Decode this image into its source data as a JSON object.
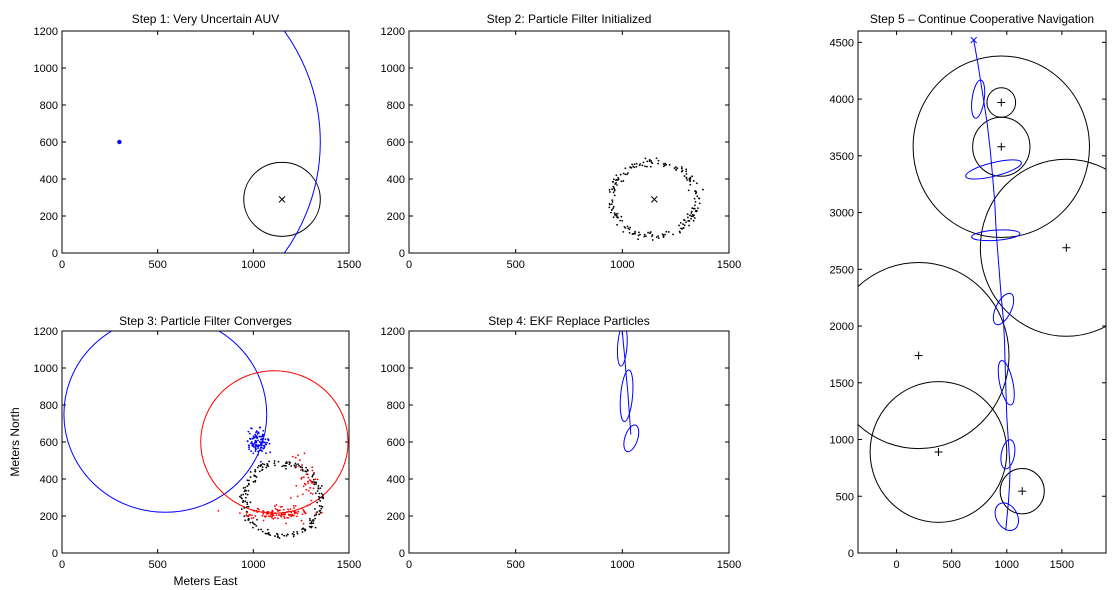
{
  "figure": {
    "xlabel": "Meters East",
    "ylabel": "Meters North"
  },
  "chart_data": [
    {
      "id": "step1",
      "type": "scatter",
      "title": "Step 1: Very Uncertain AUV",
      "xlim": [
        0,
        1500
      ],
      "ylim": [
        0,
        1200
      ],
      "xticks": [
        0,
        500,
        1000,
        1500
      ],
      "yticks": [
        0,
        200,
        400,
        600,
        800,
        1000,
        1200
      ],
      "circles": [
        {
          "cx": 1150,
          "cy": 290,
          "r": 200,
          "color": "#000000"
        },
        {
          "cx": 300,
          "cy": 600,
          "r": 1050,
          "color": "#0000ff"
        }
      ],
      "points": [
        {
          "x": 300,
          "y": 600,
          "marker": "dot",
          "color": "#0000ff"
        },
        {
          "x": 1150,
          "y": 290,
          "marker": "x",
          "color": "#000000"
        }
      ]
    },
    {
      "id": "step2",
      "type": "scatter",
      "title": "Step 2: Particle Filter Initialized",
      "xlim": [
        0,
        1500
      ],
      "ylim": [
        0,
        1200
      ],
      "xticks": [
        0,
        500,
        1000,
        1500
      ],
      "yticks": [
        0,
        200,
        400,
        600,
        800,
        1000,
        1200
      ],
      "points": [
        {
          "x": 1150,
          "y": 290,
          "marker": "x",
          "color": "#000000"
        }
      ],
      "particle_rings": [
        {
          "cx": 1150,
          "cy": 290,
          "r": 200,
          "n": 200,
          "color": "#000000"
        }
      ]
    },
    {
      "id": "step3",
      "type": "scatter",
      "title": "Step 3: Particle Filter Converges",
      "xlim": [
        0,
        1500
      ],
      "ylim": [
        0,
        1200
      ],
      "xticks": [
        0,
        500,
        1000,
        1500
      ],
      "yticks": [
        0,
        200,
        400,
        600,
        800,
        1000,
        1200
      ],
      "circles": [
        {
          "cx": 540,
          "cy": 750,
          "r": 530,
          "color": "#0000ff"
        },
        {
          "cx": 1110,
          "cy": 600,
          "r": 385,
          "color": "#ff0000"
        }
      ],
      "particle_rings": [
        {
          "cx": 1150,
          "cy": 290,
          "r": 200,
          "n": 200,
          "color": "#000000"
        }
      ],
      "particle_clusters": [
        {
          "cx": 1020,
          "cy": 600,
          "sx": 28,
          "sy": 32,
          "n": 110,
          "color": "#0000ff"
        },
        {
          "cx": 1130,
          "cy": 215,
          "sx": 90,
          "sy": 18,
          "n": 120,
          "color": "#ff0000"
        },
        {
          "cx": 1270,
          "cy": 420,
          "sx": 30,
          "sy": 80,
          "n": 40,
          "color": "#ff0000"
        }
      ]
    },
    {
      "id": "step4",
      "type": "line",
      "title": "Step 4: EKF Replace Particles",
      "xlim": [
        0,
        1500
      ],
      "ylim": [
        0,
        1200
      ],
      "xticks": [
        0,
        500,
        1000,
        1500
      ],
      "yticks": [
        0,
        200,
        400,
        600,
        800,
        1000,
        1200
      ],
      "track": {
        "x": [
          1000,
          1005,
          1012,
          1018,
          1025,
          1030,
          1035,
          1040
        ],
        "y": [
          1200,
          1130,
          1050,
          960,
          880,
          800,
          720,
          640
        ],
        "color": "#0000ff"
      },
      "ellipses": [
        {
          "cx": 1000,
          "cy": 1120,
          "rx": 22,
          "ry": 110,
          "angle": 4,
          "color": "#0000ff"
        },
        {
          "cx": 1020,
          "cy": 850,
          "rx": 28,
          "ry": 140,
          "angle": 5,
          "color": "#0000ff"
        },
        {
          "cx": 1042,
          "cy": 620,
          "rx": 30,
          "ry": 75,
          "angle": 18,
          "color": "#0000ff"
        }
      ]
    },
    {
      "id": "step5",
      "type": "line",
      "title": "Step 5 – Continue Cooperative Navigation",
      "xlim": [
        -350,
        1900
      ],
      "ylim": [
        0,
        4600
      ],
      "xticks": [
        0,
        500,
        1000,
        1500
      ],
      "yticks": [
        0,
        500,
        1000,
        1500,
        2000,
        2500,
        3000,
        3500,
        4000,
        4500
      ],
      "circles": [
        {
          "cx": 950,
          "cy": 3580,
          "r": 800,
          "color": "#000000"
        },
        {
          "cx": 950,
          "cy": 3580,
          "r": 260,
          "color": "#000000"
        },
        {
          "cx": 950,
          "cy": 3970,
          "r": 130,
          "color": "#000000"
        },
        {
          "cx": 1540,
          "cy": 2690,
          "r": 780,
          "color": "#000000"
        },
        {
          "cx": 200,
          "cy": 1740,
          "r": 820,
          "color": "#000000"
        },
        {
          "cx": 380,
          "cy": 890,
          "r": 620,
          "color": "#000000"
        },
        {
          "cx": 1140,
          "cy": 545,
          "r": 200,
          "color": "#000000"
        }
      ],
      "points": [
        {
          "x": 950,
          "y": 3580,
          "marker": "plus",
          "color": "#000000"
        },
        {
          "x": 950,
          "y": 3970,
          "marker": "plus",
          "color": "#000000"
        },
        {
          "x": 1540,
          "y": 2690,
          "marker": "plus",
          "color": "#000000"
        },
        {
          "x": 200,
          "y": 1740,
          "marker": "plus",
          "color": "#000000"
        },
        {
          "x": 380,
          "y": 890,
          "marker": "plus",
          "color": "#000000"
        },
        {
          "x": 1140,
          "y": 545,
          "marker": "plus",
          "color": "#000000"
        },
        {
          "x": 700,
          "y": 4520,
          "marker": "x",
          "color": "#0000ff"
        }
      ],
      "track": {
        "x": [
          700,
          740,
          780,
          820,
          850,
          870,
          890,
          900,
          910,
          930,
          950,
          970,
          980,
          985,
          990,
          995,
          1000,
          1010,
          1020,
          1030,
          1025,
          1015,
          1000,
          990
        ],
        "y": [
          4520,
          4300,
          4050,
          3800,
          3550,
          3330,
          3100,
          2900,
          2750,
          2500,
          2250,
          2050,
          1850,
          1650,
          1500,
          1350,
          1200,
          1050,
          900,
          750,
          600,
          450,
          300,
          200
        ],
        "color": "#0000ff"
      },
      "ellipses": [
        {
          "cx": 740,
          "cy": 4000,
          "rx": 55,
          "ry": 170,
          "angle": 8,
          "color": "#0000ff"
        },
        {
          "cx": 880,
          "cy": 3380,
          "rx": 260,
          "ry": 60,
          "angle": -14,
          "color": "#0000ff"
        },
        {
          "cx": 900,
          "cy": 2800,
          "rx": 220,
          "ry": 45,
          "angle": -4,
          "color": "#0000ff"
        },
        {
          "cx": 970,
          "cy": 2150,
          "rx": 70,
          "ry": 150,
          "angle": 26,
          "color": "#0000ff"
        },
        {
          "cx": 995,
          "cy": 1500,
          "rx": 60,
          "ry": 200,
          "angle": -12,
          "color": "#0000ff"
        },
        {
          "cx": 1010,
          "cy": 870,
          "rx": 60,
          "ry": 130,
          "angle": 10,
          "color": "#0000ff"
        },
        {
          "cx": 1000,
          "cy": 320,
          "rx": 95,
          "ry": 130,
          "angle": -30,
          "color": "#0000ff"
        }
      ]
    }
  ]
}
